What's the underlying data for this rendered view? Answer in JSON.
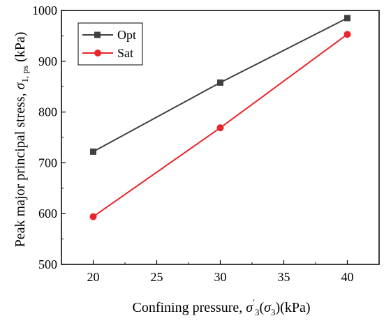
{
  "chart_data": {
    "type": "line",
    "x": [
      20,
      30,
      40
    ],
    "series": [
      {
        "name": "Opt",
        "values": [
          722,
          858,
          985
        ],
        "color": "#404040",
        "marker": "square"
      },
      {
        "name": "Sat",
        "values": [
          594,
          769,
          953
        ],
        "color": "#e8262a",
        "marker": "circle"
      }
    ],
    "xlabel": "Confining pressure, σ′3(σ3)(kPa)",
    "ylabel": "Peak major principal stress, σ1, ps (kPa)",
    "xlim": [
      17.5,
      42.5
    ],
    "ylim": [
      500,
      1000
    ],
    "xticks": [
      20,
      25,
      30,
      35,
      40
    ],
    "yticks": [
      500,
      600,
      700,
      800,
      900,
      1000
    ],
    "grid": false,
    "legend_position": "top-left"
  }
}
